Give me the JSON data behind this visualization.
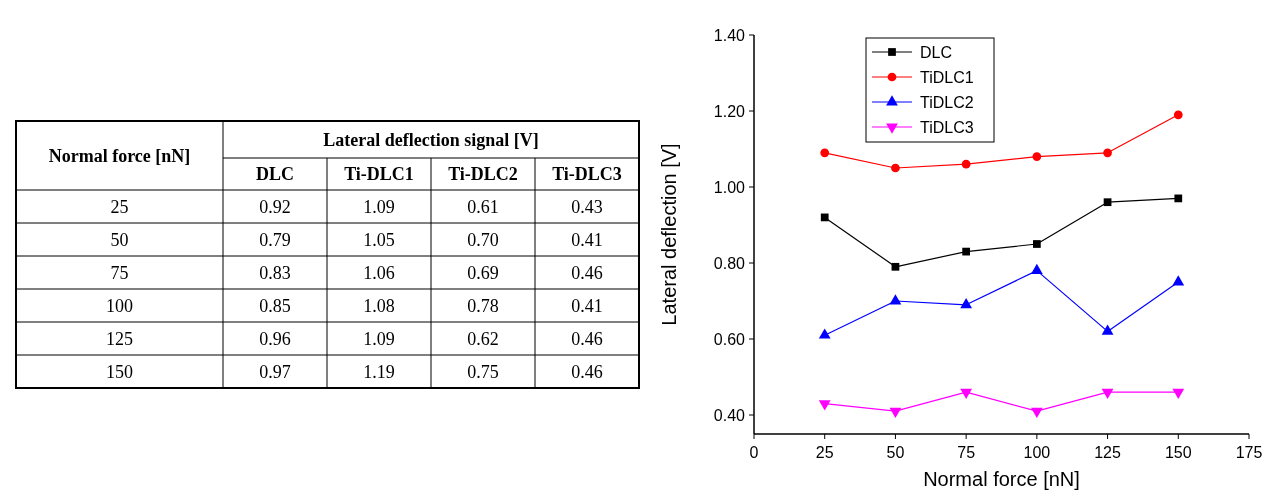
{
  "chart_data": [
    {
      "type": "heatmap",
      "title": "Lateral deflection signal [V]",
      "ylabel": "Normal force [nN]",
      "categories": [
        "DLC",
        "Ti-DLC1",
        "Ti-DLC2",
        "Ti-DLC3"
      ],
      "y_categories": [
        "25",
        "50",
        "75",
        "100",
        "125",
        "150"
      ],
      "cells": [
        [
          0.92,
          1.09,
          0.61,
          0.43
        ],
        [
          0.79,
          1.05,
          0.7,
          0.41
        ],
        [
          0.83,
          1.06,
          0.69,
          0.46
        ],
        [
          0.85,
          1.08,
          0.78,
          0.41
        ],
        [
          0.96,
          1.09,
          0.62,
          0.46
        ],
        [
          0.97,
          1.19,
          0.75,
          0.46
        ]
      ],
      "cell_labels": [
        [
          "0.92",
          "1.09",
          "0.61",
          "0.43"
        ],
        [
          "0.79",
          "1.05",
          "0.70",
          "0.41"
        ],
        [
          "0.83",
          "1.06",
          "0.69",
          "0.46"
        ],
        [
          "0.85",
          "1.08",
          "0.78",
          "0.41"
        ],
        [
          "0.96",
          "1.09",
          "0.62",
          "0.46"
        ],
        [
          "0.97",
          "1.19",
          "0.75",
          "0.46"
        ]
      ],
      "data_labels": true
    },
    {
      "type": "line",
      "xlabel": "Normal force [nN]",
      "ylabel": "Lateral deflection [V]",
      "x": [
        25,
        50,
        75,
        100,
        125,
        150
      ],
      "series": [
        {
          "name": "DLC",
          "color": "#000000",
          "marker": "square",
          "values": [
            0.92,
            0.79,
            0.83,
            0.85,
            0.96,
            0.97
          ]
        },
        {
          "name": "TiDLC1",
          "color": "#ff0000",
          "marker": "circle",
          "values": [
            1.09,
            1.05,
            1.06,
            1.08,
            1.09,
            1.19
          ]
        },
        {
          "name": "TiDLC2",
          "color": "#0000ff",
          "marker": "triangle",
          "values": [
            0.61,
            0.7,
            0.69,
            0.78,
            0.62,
            0.75
          ]
        },
        {
          "name": "TiDLC3",
          "color": "#ff00ff",
          "marker": "triangle-down",
          "values": [
            0.43,
            0.41,
            0.46,
            0.41,
            0.46,
            0.46
          ]
        }
      ],
      "xlim": [
        0,
        175
      ],
      "xticks": [
        0,
        25,
        50,
        75,
        100,
        125,
        150,
        175
      ],
      "ylim": [
        0.35,
        1.4
      ],
      "yticks": [
        {
          "value": 0.4,
          "label": "0.40"
        },
        {
          "value": 0.6,
          "label": "0.60"
        },
        {
          "value": 0.8,
          "label": "0.80"
        },
        {
          "value": 1.0,
          "label": "1.00"
        },
        {
          "value": 1.2,
          "label": "1.20"
        },
        {
          "value": 1.4,
          "label": "1.40"
        }
      ],
      "legend": "top left",
      "grid": false
    }
  ]
}
